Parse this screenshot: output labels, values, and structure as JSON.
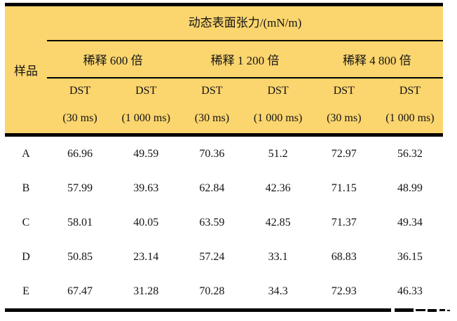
{
  "table": {
    "title": "动态表面张力/(mN/m)",
    "sample_header": "样品",
    "dilution_groups": [
      "稀释 600 倍",
      "稀释 1 200 倍",
      "稀释 4 800 倍"
    ],
    "subcols": [
      {
        "line1": "DST",
        "line2": "(30 ms)"
      },
      {
        "line1": "DST",
        "line2": "(1 000 ms)"
      },
      {
        "line1": "DST",
        "line2": "(30 ms)"
      },
      {
        "line1": "DST",
        "line2": "(1 000 ms)"
      },
      {
        "line1": "DST",
        "line2": "(30 ms)"
      },
      {
        "line1": "DST",
        "line2": "(1 000 ms)"
      }
    ],
    "rows": [
      {
        "sample": "A",
        "values": [
          "66.96",
          "49.59",
          "70.36",
          "51.2",
          "72.97",
          "56.32"
        ]
      },
      {
        "sample": "B",
        "values": [
          "57.99",
          "39.63",
          "62.84",
          "42.36",
          "71.15",
          "48.99"
        ]
      },
      {
        "sample": "C",
        "values": [
          "58.01",
          "40.05",
          "63.59",
          "42.85",
          "71.37",
          "49.34"
        ]
      },
      {
        "sample": "D",
        "values": [
          "50.85",
          "23.14",
          "57.24",
          "33.1",
          "68.83",
          "36.15"
        ]
      },
      {
        "sample": "E",
        "values": [
          "67.47",
          "31.28",
          "70.28",
          "34.3",
          "72.93",
          "46.33"
        ]
      }
    ],
    "colors": {
      "header_bg": "#FBD56E",
      "line": "#000000",
      "text": "#141414"
    }
  }
}
